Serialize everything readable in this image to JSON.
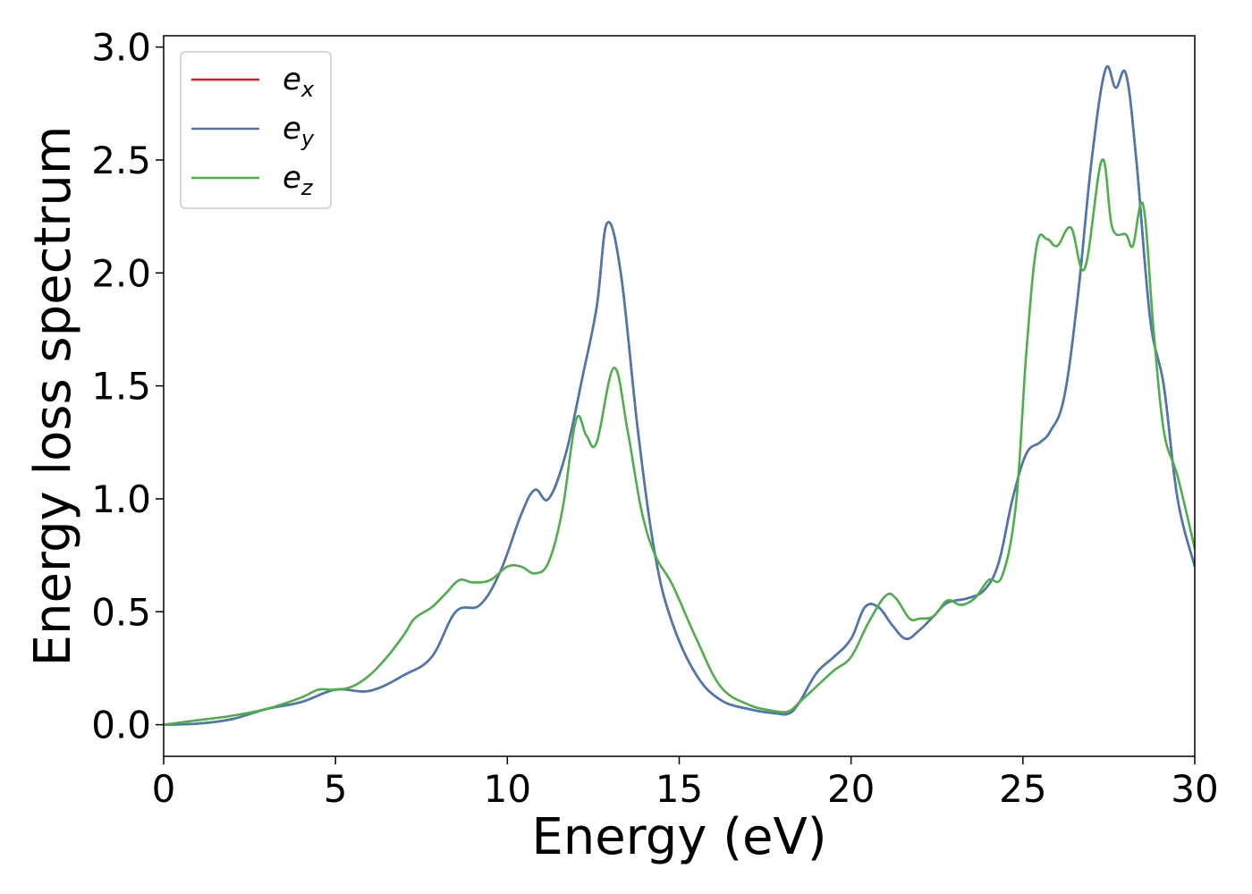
{
  "colors": {
    "ex": "#e41a1c",
    "ey": "#4a78b5",
    "ez": "#4daf4a",
    "axis": "#000000",
    "legend_border": "#cccccc"
  },
  "chart_data": {
    "type": "line",
    "title": "",
    "xlabel": "Energy (eV)",
    "ylabel": "Energy loss spectrum",
    "xlim": [
      0,
      30
    ],
    "ylim": [
      -0.14,
      3.05
    ],
    "xticks": [
      0,
      5,
      10,
      15,
      20,
      25,
      30
    ],
    "xtick_labels": [
      "0",
      "5",
      "10",
      "15",
      "20",
      "25",
      "30"
    ],
    "yticks": [
      0.0,
      0.5,
      1.0,
      1.5,
      2.0,
      2.5,
      3.0
    ],
    "ytick_labels": [
      "0.0",
      "0.5",
      "1.0",
      "1.5",
      "2.0",
      "2.5",
      "3.0"
    ],
    "grid": false,
    "legend_position": "top-left",
    "series": [
      {
        "key": "ex",
        "name": "e_x",
        "legend_main": "e",
        "legend_sub": "x",
        "color": "#e41a1c",
        "x": [
          0,
          1,
          2,
          3,
          4,
          5,
          6,
          7,
          7.8,
          8.5,
          9.2,
          9.8,
          10.4,
          10.8,
          11.2,
          11.7,
          12.2,
          12.6,
          12.9,
          13.3,
          13.8,
          14.3,
          14.8,
          15.5,
          16.2,
          17,
          17.8,
          18.2,
          18.5,
          19,
          19.5,
          20,
          20.4,
          20.8,
          21.2,
          21.6,
          22,
          22.4,
          22.8,
          23.4,
          23.9,
          24.3,
          24.7,
          25.1,
          25.5,
          25.8,
          26.2,
          26.6,
          27,
          27.4,
          27.7,
          28,
          28.3,
          28.7,
          29.1,
          29.5,
          30
        ],
        "y": [
          0.0,
          0.005,
          0.025,
          0.07,
          0.1,
          0.155,
          0.15,
          0.22,
          0.3,
          0.5,
          0.53,
          0.68,
          0.93,
          1.04,
          1.0,
          1.2,
          1.55,
          1.85,
          2.22,
          2.0,
          1.3,
          0.75,
          0.45,
          0.22,
          0.11,
          0.07,
          0.05,
          0.05,
          0.1,
          0.23,
          0.3,
          0.38,
          0.52,
          0.52,
          0.44,
          0.38,
          0.42,
          0.48,
          0.54,
          0.56,
          0.6,
          0.72,
          1.0,
          1.2,
          1.25,
          1.3,
          1.45,
          1.9,
          2.5,
          2.9,
          2.82,
          2.88,
          2.5,
          1.8,
          1.5,
          1.0,
          0.7
        ]
      },
      {
        "key": "ey",
        "name": "e_y",
        "legend_main": "e",
        "legend_sub": "y",
        "color": "#4a78b5",
        "x": [
          0,
          1,
          2,
          3,
          4,
          5,
          6,
          7,
          7.8,
          8.5,
          9.2,
          9.8,
          10.4,
          10.8,
          11.2,
          11.7,
          12.2,
          12.6,
          12.9,
          13.3,
          13.8,
          14.3,
          14.8,
          15.5,
          16.2,
          17,
          17.8,
          18.2,
          18.5,
          19,
          19.5,
          20,
          20.4,
          20.8,
          21.2,
          21.6,
          22,
          22.4,
          22.8,
          23.4,
          23.9,
          24.3,
          24.7,
          25.1,
          25.5,
          25.8,
          26.2,
          26.6,
          27,
          27.4,
          27.7,
          28,
          28.3,
          28.7,
          29.1,
          29.5,
          30
        ],
        "y": [
          0.0,
          0.005,
          0.025,
          0.07,
          0.1,
          0.155,
          0.15,
          0.22,
          0.3,
          0.5,
          0.53,
          0.68,
          0.93,
          1.04,
          1.0,
          1.2,
          1.55,
          1.85,
          2.22,
          2.0,
          1.3,
          0.75,
          0.45,
          0.22,
          0.11,
          0.07,
          0.05,
          0.05,
          0.1,
          0.23,
          0.3,
          0.38,
          0.52,
          0.52,
          0.44,
          0.38,
          0.42,
          0.48,
          0.54,
          0.56,
          0.6,
          0.72,
          1.0,
          1.2,
          1.25,
          1.3,
          1.45,
          1.9,
          2.5,
          2.9,
          2.82,
          2.88,
          2.5,
          1.8,
          1.5,
          1.0,
          0.7
        ]
      },
      {
        "key": "ez",
        "name": "e_z",
        "legend_main": "e",
        "legend_sub": "z",
        "color": "#4daf4a",
        "x": [
          0,
          1,
          2,
          3,
          4,
          4.5,
          5,
          5.5,
          6,
          6.5,
          7,
          7.3,
          7.8,
          8.2,
          8.6,
          9,
          9.5,
          10,
          10.4,
          10.8,
          11.2,
          11.6,
          12,
          12.3,
          12.6,
          13.1,
          13.5,
          13.9,
          14.3,
          14.8,
          15.5,
          16.2,
          17,
          17.8,
          18.2,
          18.5,
          19,
          19.5,
          20,
          20.5,
          21,
          21.3,
          21.7,
          22,
          22.4,
          22.8,
          23.2,
          23.6,
          24,
          24.4,
          24.8,
          25.1,
          25.4,
          25.7,
          26,
          26.4,
          26.8,
          27.3,
          27.6,
          28,
          28.2,
          28.5,
          28.8,
          29.1,
          29.5,
          30
        ],
        "y": [
          0.0,
          0.02,
          0.04,
          0.07,
          0.12,
          0.155,
          0.155,
          0.17,
          0.22,
          0.3,
          0.4,
          0.47,
          0.52,
          0.58,
          0.64,
          0.63,
          0.64,
          0.7,
          0.7,
          0.67,
          0.72,
          0.95,
          1.35,
          1.28,
          1.25,
          1.58,
          1.3,
          0.95,
          0.75,
          0.62,
          0.38,
          0.17,
          0.09,
          0.06,
          0.06,
          0.1,
          0.17,
          0.24,
          0.3,
          0.45,
          0.57,
          0.56,
          0.47,
          0.47,
          0.48,
          0.55,
          0.53,
          0.56,
          0.64,
          0.66,
          0.98,
          1.65,
          2.12,
          2.15,
          2.12,
          2.2,
          2.02,
          2.5,
          2.2,
          2.17,
          2.12,
          2.3,
          1.75,
          1.3,
          1.1,
          0.78
        ]
      }
    ]
  }
}
